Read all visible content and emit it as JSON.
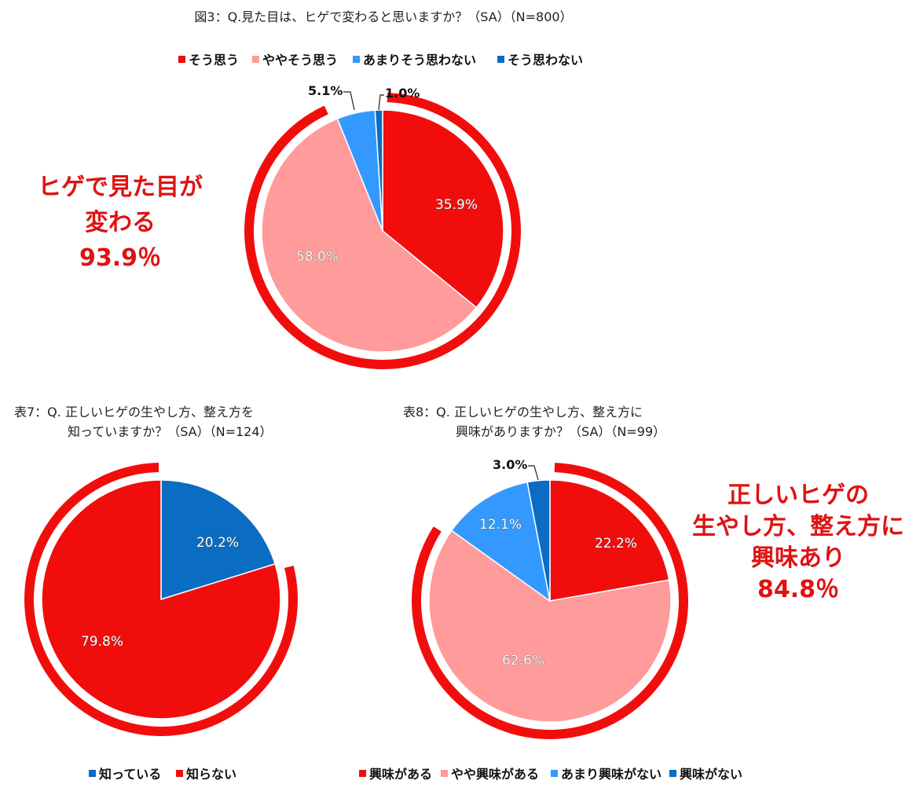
{
  "colors": {
    "red": "#f20d0d",
    "pink": "#ff9b9b",
    "lightblue": "#3399ff",
    "blue": "#0a6cc2",
    "accent": "#e01212"
  },
  "chart_data": [
    {
      "type": "pie",
      "title": "図3：Q.見た目は、ヒゲで変わると思いますか？（SA）（N=800）",
      "categories": [
        "そう思う",
        "ややそう思う",
        "あまりそう思わない",
        "そう思わない"
      ],
      "values": [
        35.9,
        58.0,
        5.1,
        1.0
      ],
      "value_labels": [
        "35.9%",
        "58.0%",
        "5.1%",
        "1.0%"
      ],
      "colors": [
        "#f20d0d",
        "#ff9b9b",
        "#3399ff",
        "#0a6cc2"
      ],
      "legend": "top",
      "callout": [
        "ヒゲで見た目が",
        "変わる",
        "93.9％"
      ]
    },
    {
      "type": "pie",
      "title": [
        "表7：Q. 正しいヒゲの生やし方、整え方を",
        "知っていますか？（SA）（N=124）"
      ],
      "categories": [
        "知っている",
        "知らない"
      ],
      "values": [
        20.2,
        79.8
      ],
      "value_labels": [
        "20.2%",
        "79.8%"
      ],
      "colors": [
        "#0a6cc2",
        "#f20d0d"
      ],
      "legend": "bottom"
    },
    {
      "type": "pie",
      "title": [
        "表8：Q. 正しいヒゲの生やし方、整え方に",
        "興味がありますか？（SA）（N=99）"
      ],
      "categories": [
        "興味がある",
        "やや興味がある",
        "あまり興味がない",
        "興味がない"
      ],
      "values": [
        22.2,
        62.6,
        12.1,
        3.0
      ],
      "value_labels": [
        "22.2%",
        "62.6%",
        "12.1%",
        "3.0%"
      ],
      "colors": [
        "#f20d0d",
        "#ff9b9b",
        "#3399ff",
        "#0a6cc2"
      ],
      "legend": "bottom",
      "callout": [
        "正しいヒゲの",
        "生やし方、整え方に",
        "興味あり",
        "84.8％"
      ]
    }
  ]
}
